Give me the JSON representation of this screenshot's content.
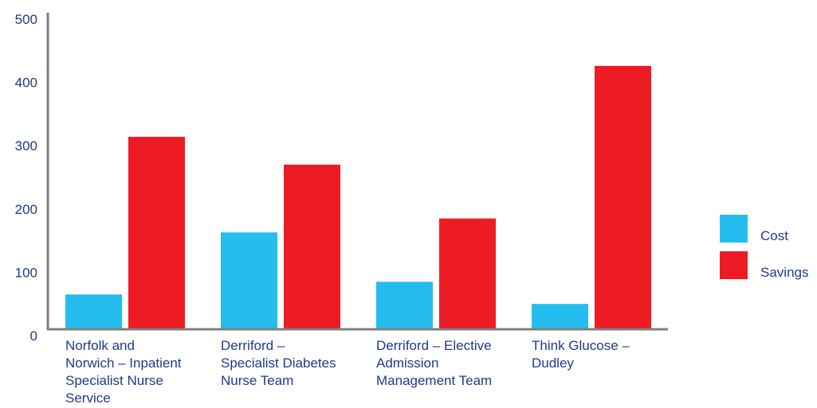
{
  "chart_data": {
    "type": "bar",
    "categories": [
      "Norfolk and Norwich – Inpatient Specialist Nurse Service",
      "Derriford – Specialist Diabetes Nurse Team",
      "Derriford – Elective Admission Management Team",
      "Think Glucose – Dudley"
    ],
    "category_lines": [
      [
        "Norfolk and",
        "Norwich – Inpatient",
        "Specialist Nurse",
        "Service"
      ],
      [
        "Derriford –",
        "Specialist Diabetes",
        "Nurse Team"
      ],
      [
        "Derriford – Elective",
        "Admission",
        "Management Team"
      ],
      [
        "Think Glucose –",
        "Dudley"
      ]
    ],
    "series": [
      {
        "name": "Cost",
        "color": "#25bdee",
        "values": [
          55,
          153,
          75,
          40
        ]
      },
      {
        "name": "Savings",
        "color": "#ed1c24",
        "values": [
          304,
          260,
          175,
          416
        ]
      }
    ],
    "ylim": [
      0,
      500
    ],
    "yticks": [
      "0",
      "100",
      "200",
      "300",
      "400",
      "500"
    ],
    "title": "",
    "xlabel": "",
    "ylabel": "",
    "legend_position": "right",
    "grid": false
  }
}
